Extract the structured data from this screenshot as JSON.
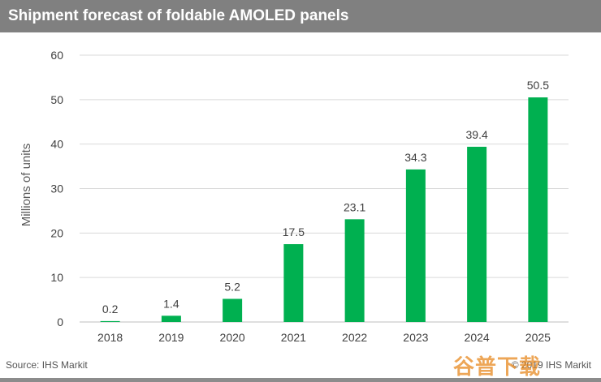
{
  "title": "Shipment forecast of foldable AMOLED panels",
  "footer": {
    "source": "Source: IHS Markit",
    "copyright": "© 2019 IHS Markit"
  },
  "watermark": "谷普下载",
  "colors": {
    "bar": "#00b050",
    "title_bar": "#808080",
    "grid": "#d9d9d9",
    "text": "#404040"
  },
  "chart_data": {
    "type": "bar",
    "categories": [
      "2018",
      "2019",
      "2020",
      "2021",
      "2022",
      "2023",
      "2024",
      "2025"
    ],
    "values": [
      0.2,
      1.4,
      5.2,
      17.5,
      23.1,
      34.3,
      39.4,
      50.5
    ],
    "data_labels": [
      "0.2",
      "1.4",
      "5.2",
      "17.5",
      "23.1",
      "34.3",
      "39.4",
      "50.5"
    ],
    "y_ticks": [
      "0",
      "10",
      "20",
      "30",
      "40",
      "50",
      "60"
    ],
    "title": "Shipment forecast of foldable AMOLED panels",
    "xlabel": "",
    "ylabel": "Millions of units",
    "ylim": [
      0,
      60
    ],
    "grid": true,
    "legend": false
  }
}
